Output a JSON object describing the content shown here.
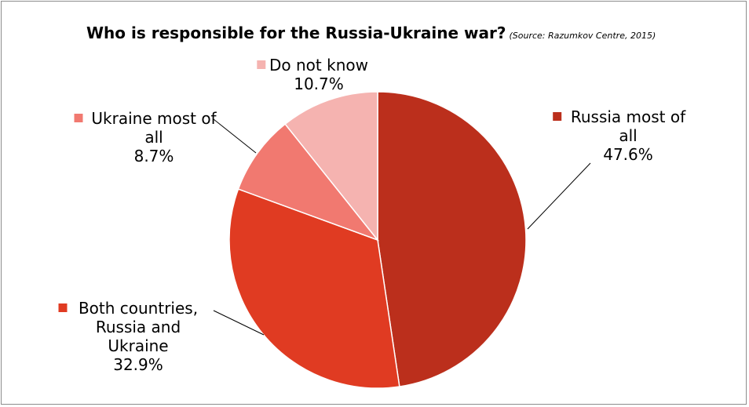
{
  "chart_data": {
    "type": "pie",
    "title": "Who is responsible for the Russia-Ukraine war?",
    "subtitle": "(Source: Razumkov Centre, 2015)",
    "slices": [
      {
        "label": "Russia most of all",
        "label_lines": [
          "Russia most of",
          "all"
        ],
        "value": 47.6,
        "value_text": "47.6%",
        "color": "#bb2f1c"
      },
      {
        "label": "Both countries, Russia and Ukraine",
        "label_lines": [
          "Both countries,",
          "Russia and",
          "Ukraine"
        ],
        "value": 32.9,
        "value_text": "32.9%",
        "color": "#e03b22"
      },
      {
        "label": "Ukraine most of all",
        "label_lines": [
          "Ukraine most of",
          "all"
        ],
        "value": 8.7,
        "value_text": "8.7%",
        "color": "#f17970"
      },
      {
        "label": "Do not know",
        "label_lines": [
          "Do not know"
        ],
        "value": 10.7,
        "value_text": "10.7%",
        "color": "#f5b3b0"
      }
    ]
  }
}
